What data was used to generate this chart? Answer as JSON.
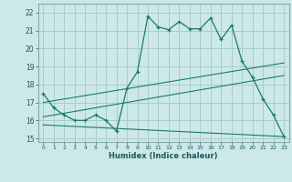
{
  "background_color": "#cce8e8",
  "grid_color": "#aacccc",
  "line_color": "#1a7a6a",
  "xlabel": "Humidex (Indice chaleur)",
  "xlim": [
    -0.5,
    23.5
  ],
  "ylim": [
    14.8,
    22.5
  ],
  "xticks": [
    0,
    1,
    2,
    3,
    4,
    5,
    6,
    7,
    8,
    9,
    10,
    11,
    12,
    13,
    14,
    15,
    16,
    17,
    18,
    19,
    20,
    21,
    22,
    23
  ],
  "yticks": [
    15,
    16,
    17,
    18,
    19,
    20,
    21,
    22
  ],
  "series1_x": [
    0,
    1,
    2,
    3,
    4,
    5,
    6,
    7,
    8,
    9,
    10,
    11,
    12,
    13,
    14,
    15,
    16,
    17,
    18,
    19,
    20,
    21,
    22,
    23
  ],
  "series1_y": [
    17.5,
    16.7,
    16.3,
    16.0,
    16.0,
    16.3,
    16.0,
    15.4,
    17.8,
    18.7,
    21.8,
    21.2,
    21.05,
    21.5,
    21.1,
    21.1,
    21.7,
    20.5,
    21.3,
    19.3,
    18.4,
    17.2,
    16.3,
    15.1
  ],
  "series2_x": [
    0,
    23
  ],
  "series2_y": [
    17.0,
    19.2
  ],
  "series3_x": [
    0,
    23
  ],
  "series3_y": [
    16.2,
    18.5
  ],
  "series4_x": [
    0,
    23
  ],
  "series4_y": [
    15.75,
    15.1
  ]
}
